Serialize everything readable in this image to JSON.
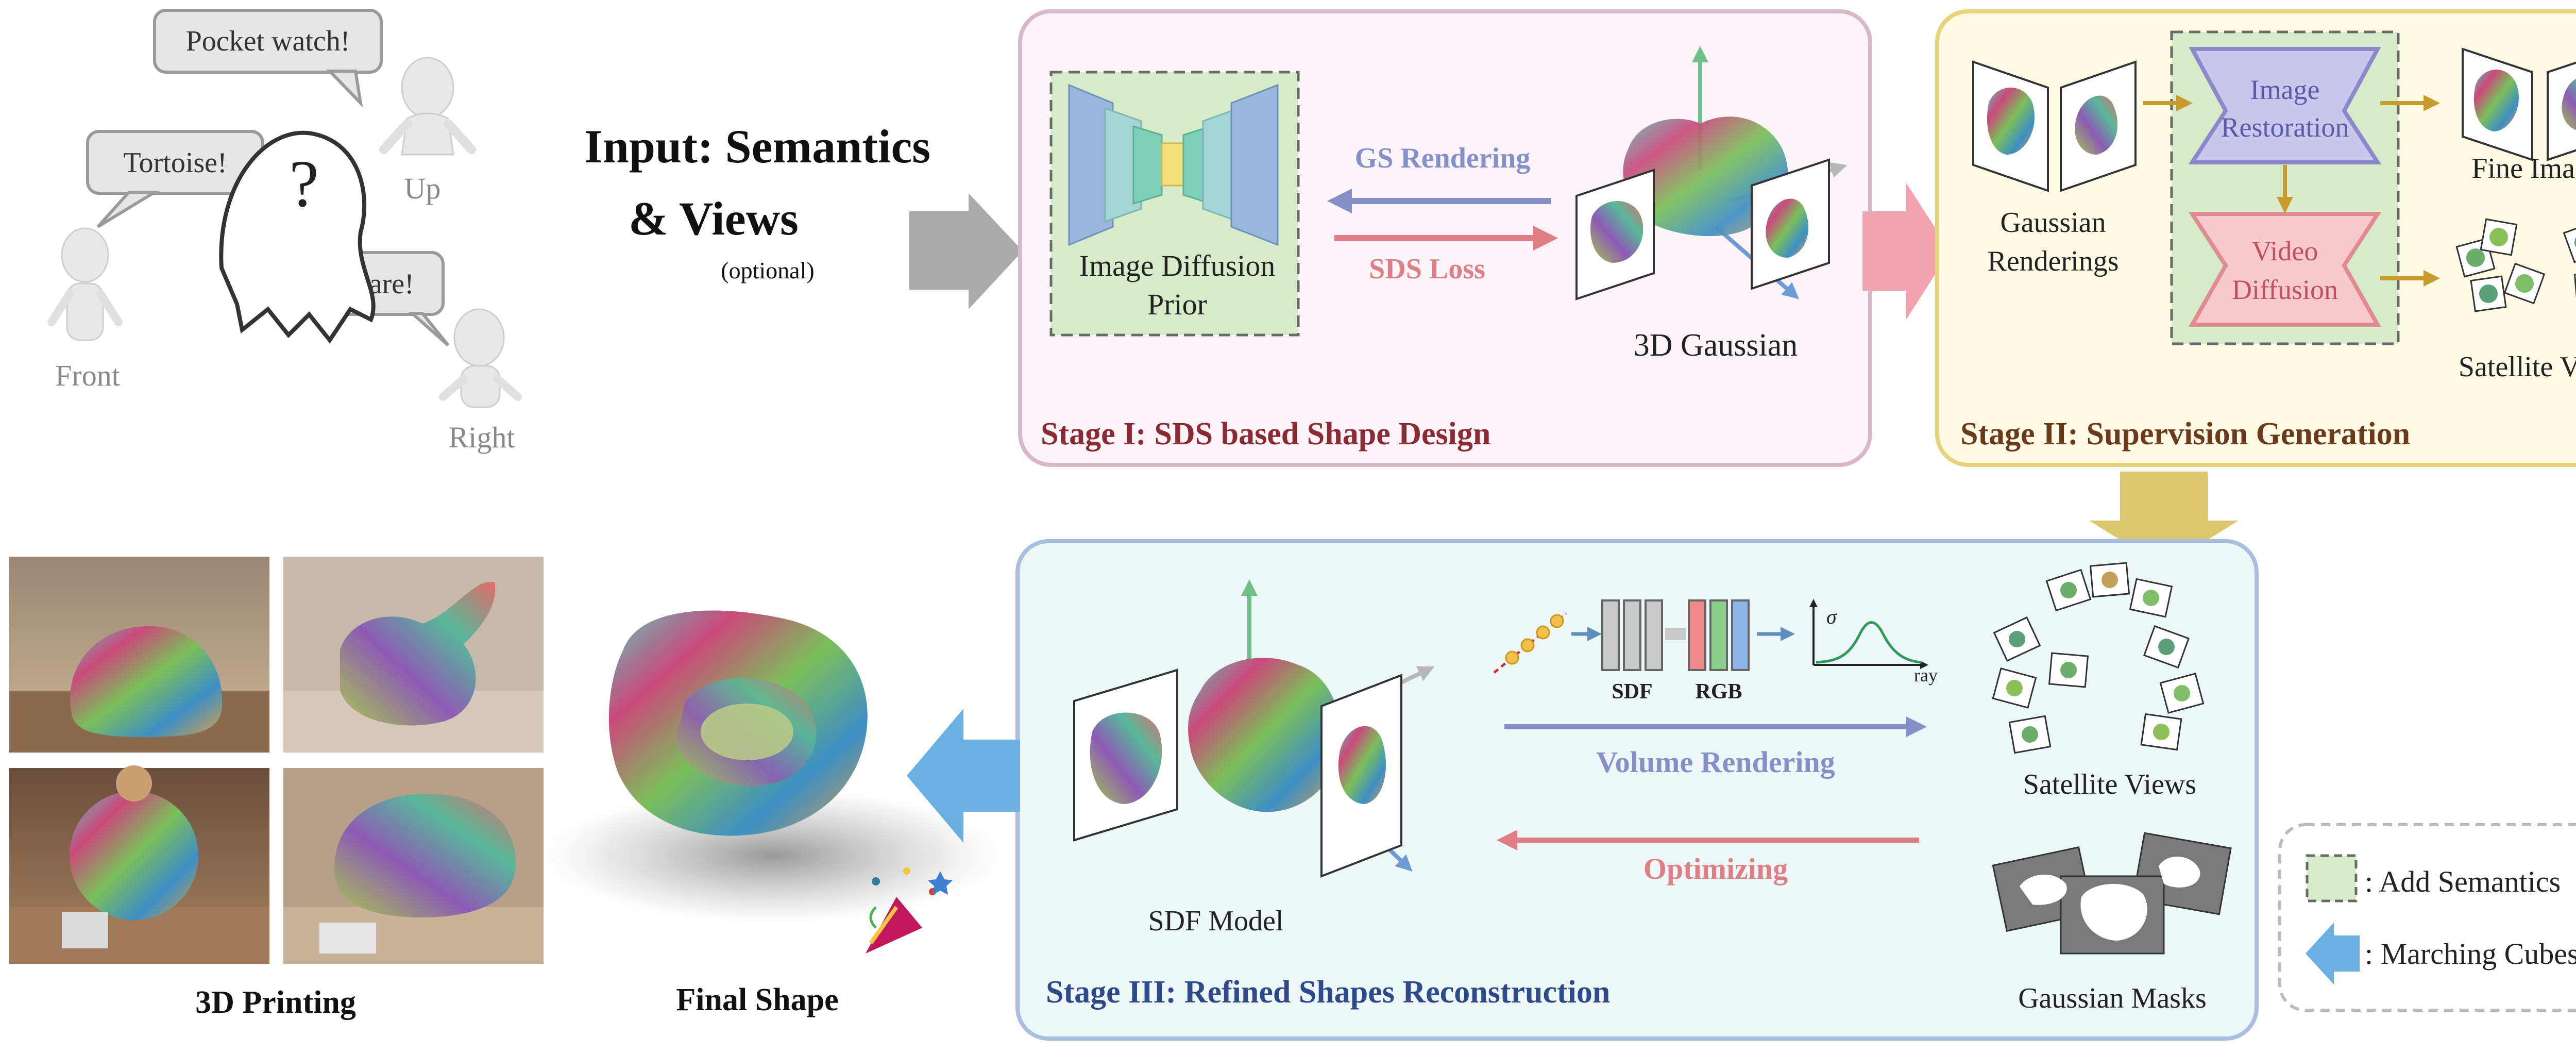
{
  "intro": {
    "speech_pocket": "Pocket watch!",
    "speech_tortoise": "Tortoise!",
    "speech_hare": "Hare!",
    "view_up": "Up",
    "view_front": "Front",
    "view_right": "Right",
    "ghost_mark": "?"
  },
  "input": {
    "line1": "Input: Semantics",
    "line2": "& Views",
    "note": "(optional)"
  },
  "stage1": {
    "title": "Stage I: SDS based Shape Design",
    "prior_line1": "Image Diffusion",
    "prior_line2": "Prior",
    "gs_rendering": "GS Rendering",
    "sds_loss": "SDS Loss",
    "gaussian_label": "3D Gaussian"
  },
  "stage2": {
    "title": "Stage II: Supervision Generation",
    "renderings_line1": "Gaussian",
    "renderings_line2": "Renderings",
    "restoration_line1": "Image",
    "restoration_line2": "Restoration",
    "video_line1": "Video",
    "video_line2": "Diffusion",
    "fine_images": "Fine Images",
    "satellite_views": "Satellite Views"
  },
  "stage3": {
    "title": "Stage III: Refined Shapes Reconstruction",
    "sdf_model": "SDF Model",
    "sdf": "SDF",
    "rgb": "RGB",
    "sigma": "σ",
    "ray": "ray",
    "volume_rendering": "Volume Rendering",
    "optimizing": "Optimizing",
    "satellite_views": "Satellite Views",
    "gaussian_masks": "Gaussian Masks"
  },
  "output": {
    "printing": "3D Printing",
    "final_shape": "Final Shape"
  },
  "legend": {
    "add_semantics": ": Add Semantics",
    "marching_cubes": ": Marching Cubes"
  },
  "colors": {
    "stage1_border": "#d8b8c8",
    "stage1_fill": "#faf3f8",
    "stage2_border": "#e8d27a",
    "stage2_fill": "#fdfbe3",
    "stage3_border": "#a9bfe0",
    "stage3_fill": "#eef7f8",
    "stage1_title": "#8a2a33",
    "stage2_title": "#6b3a1c",
    "stage3_title": "#2e4a8a",
    "gs_arrow": "#8590c8",
    "sds_arrow": "#e07e86",
    "semantics_fill": "#d6ebc8",
    "marching_arrow": "#6ab0e3"
  }
}
